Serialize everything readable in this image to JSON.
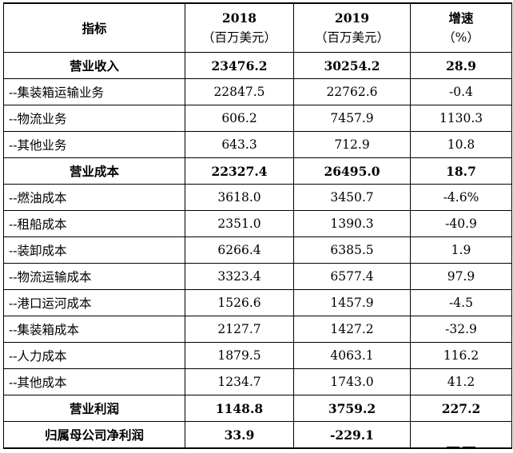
{
  "header": {
    "indicator": "指标",
    "col2018_year": "2018",
    "col2018_unit": "（百万美元）",
    "col2019_year": "2019",
    "col2019_unit": "（百万美元）",
    "growth_title": "增速",
    "growth_unit": "（%）"
  },
  "rows": [
    {
      "label": "营业收入",
      "v2018": "23476.2",
      "v2019": "30254.2",
      "growth": "28.9"
    },
    {
      "label": "--集装箱运输业务",
      "v2018": "22847.5",
      "v2019": "22762.6",
      "growth": "-0.4"
    },
    {
      "label": "--物流业务",
      "v2018": "606.2",
      "v2019": "7457.9",
      "growth": "1130.3"
    },
    {
      "label": "--其他业务",
      "v2018": "643.3",
      "v2019": "712.9",
      "growth": "10.8"
    },
    {
      "label": "营业成本",
      "v2018": "22327.4",
      "v2019": "26495.0",
      "growth": "18.7"
    },
    {
      "label": "--燃油成本",
      "v2018": "3618.0",
      "v2019": "3450.7",
      "growth": "-4.6%"
    },
    {
      "label": "--租船成本",
      "v2018": "2351.0",
      "v2019": "1390.3",
      "growth": "-40.9"
    },
    {
      "label": "--装卸成本",
      "v2018": "6266.4",
      "v2019": "6385.5",
      "growth": "1.9"
    },
    {
      "label": "--物流运输成本",
      "v2018": "3323.4",
      "v2019": "6577.4",
      "growth": "97.9"
    },
    {
      "label": "--港口运河成本",
      "v2018": "1526.6",
      "v2019": "1457.9",
      "growth": "-4.5"
    },
    {
      "label": "--集装箱成本",
      "v2018": "2127.7",
      "v2019": "1427.2",
      "growth": "-32.9"
    },
    {
      "label": "--人力成本",
      "v2018": "1879.5",
      "v2019": "4063.1",
      "growth": "116.2"
    },
    {
      "label": "--其他成本",
      "v2018": "1234.7",
      "v2019": "1743.0",
      "growth": "41.2"
    },
    {
      "label": "营业利润",
      "v2018": "1148.8",
      "v2019": "3759.2",
      "growth": "227.2"
    },
    {
      "label": "归属母公司净利润",
      "v2018": "33.9",
      "v2019": "-229.1",
      "growth": ""
    }
  ]
}
